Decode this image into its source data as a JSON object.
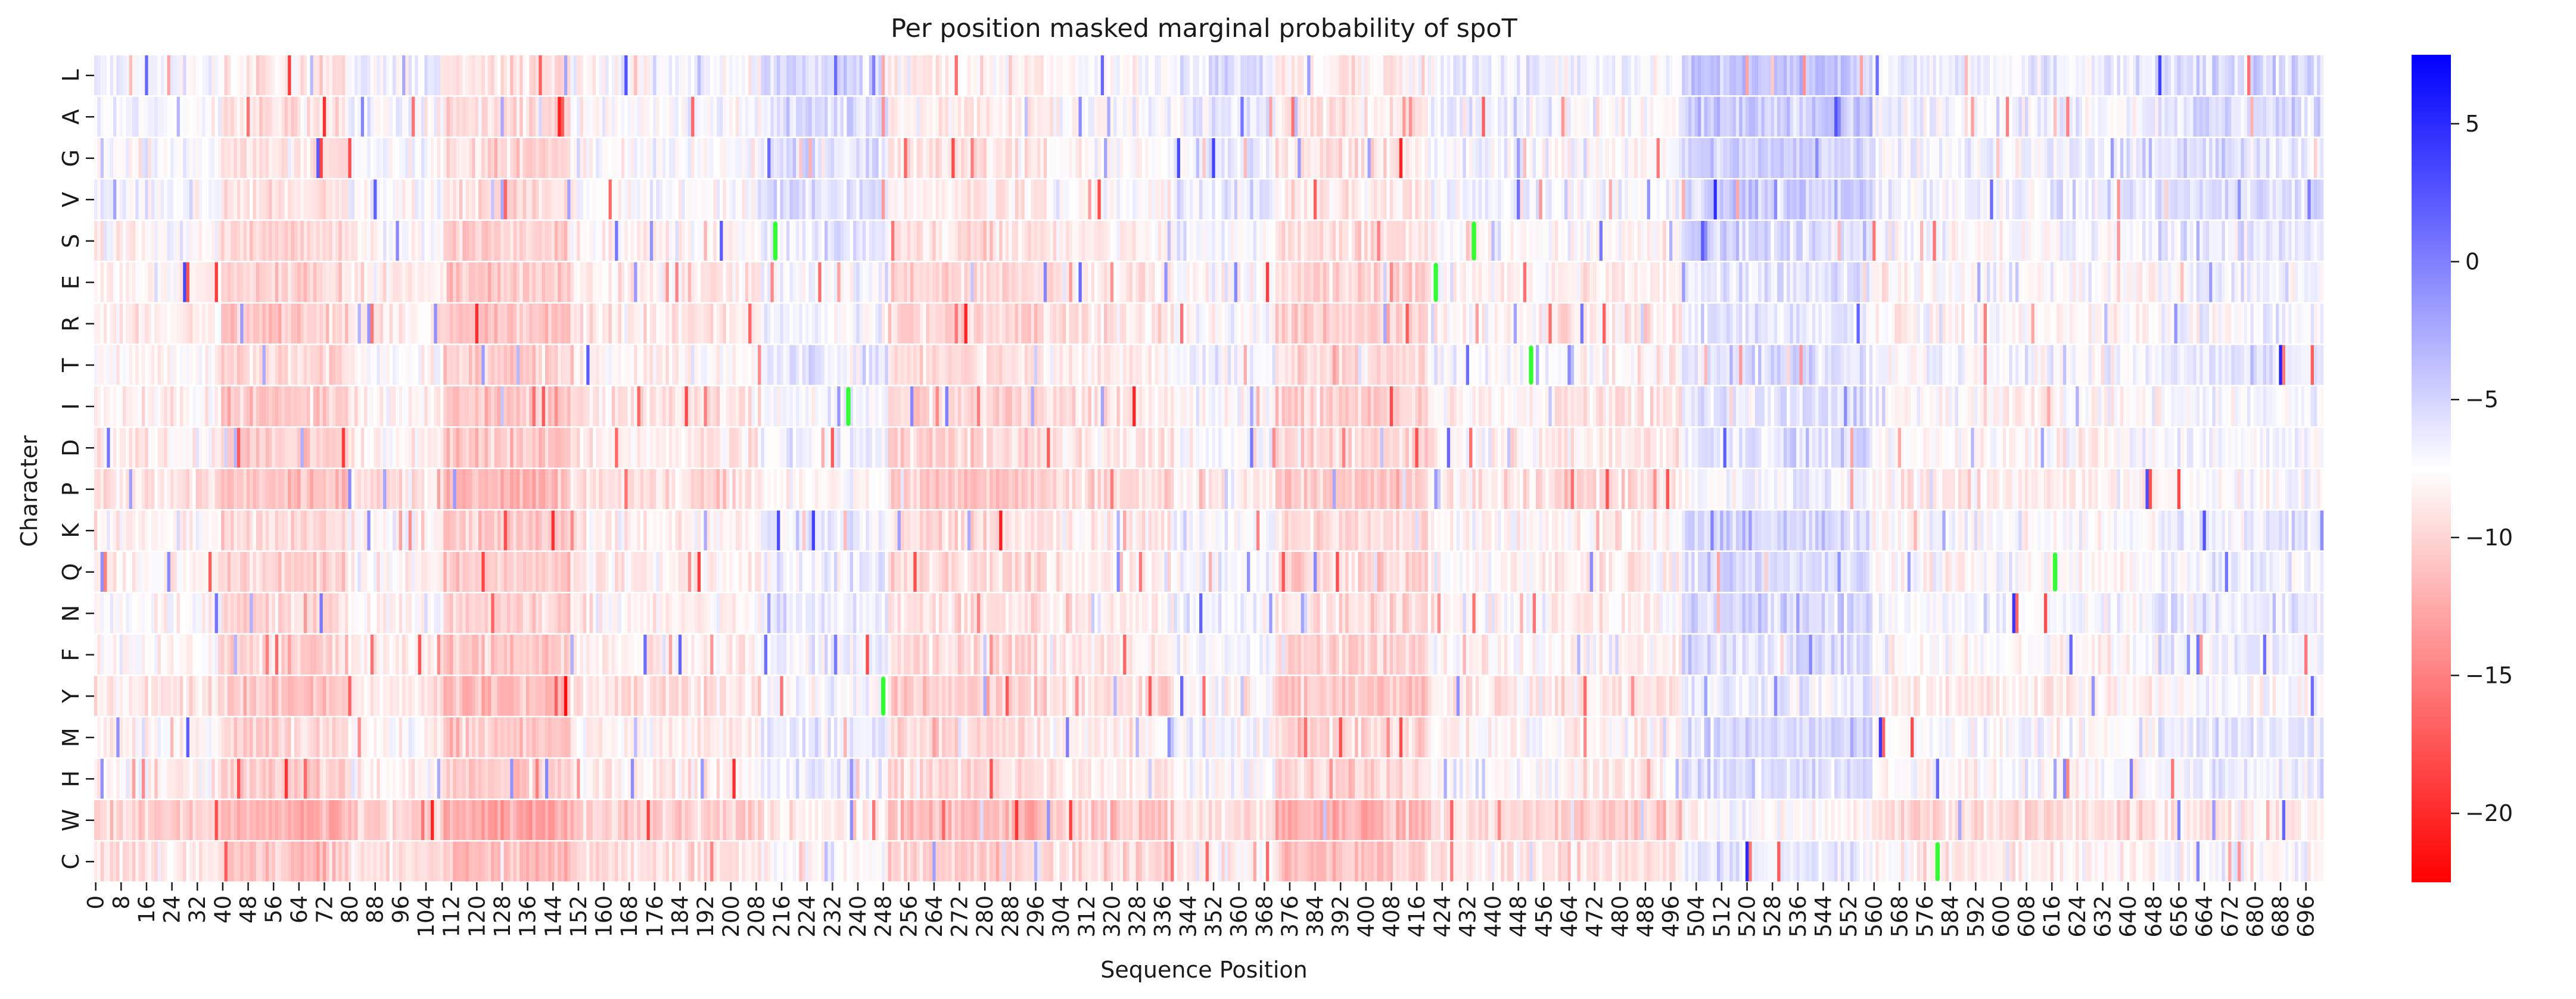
{
  "chart_data": {
    "type": "heatmap",
    "title": "Per position masked marginal probability of spoT",
    "xlabel": "Sequence Position",
    "ylabel": "Character",
    "rows": [
      "L",
      "A",
      "G",
      "V",
      "S",
      "E",
      "R",
      "T",
      "I",
      "D",
      "P",
      "K",
      "Q",
      "N",
      "F",
      "Y",
      "M",
      "H",
      "W",
      "C"
    ],
    "x_range": [
      0,
      702
    ],
    "x_tick_step": 8,
    "x_ticks": [
      0,
      8,
      16,
      24,
      32,
      40,
      48,
      56,
      64,
      72,
      80,
      88,
      96,
      104,
      112,
      120,
      128,
      136,
      144,
      152,
      160,
      168,
      176,
      184,
      192,
      200,
      208,
      216,
      224,
      232,
      240,
      248,
      256,
      264,
      272,
      280,
      288,
      296,
      304,
      312,
      320,
      328,
      336,
      344,
      352,
      360,
      368,
      376,
      384,
      392,
      400,
      408,
      416,
      424,
      432,
      440,
      448,
      456,
      464,
      472,
      480,
      488,
      496,
      504,
      512,
      520,
      528,
      536,
      544,
      552,
      560,
      568,
      576,
      584,
      592,
      600,
      608,
      616,
      624,
      632,
      640,
      648,
      656,
      664,
      672,
      680,
      688,
      696
    ],
    "colorbar": {
      "min": -22.5,
      "max": 7.5,
      "center": -7.5,
      "ticks": [
        5,
        0,
        -5,
        -10,
        -15,
        -20
      ],
      "tick_labels": [
        "5",
        "0",
        "−5",
        "−10",
        "−15",
        "−20"
      ],
      "colors": {
        "low": "#ff0000",
        "mid": "#ffffff",
        "high": "#0000ff"
      }
    },
    "column_profile": [
      {
        "start": 0,
        "end": 40,
        "mean": -8.5
      },
      {
        "start": 40,
        "end": 80,
        "mean": -10.5
      },
      {
        "start": 80,
        "end": 110,
        "mean": -8.5
      },
      {
        "start": 110,
        "end": 150,
        "mean": -11.0
      },
      {
        "start": 150,
        "end": 210,
        "mean": -8.8
      },
      {
        "start": 210,
        "end": 250,
        "mean": -7.0
      },
      {
        "start": 250,
        "end": 300,
        "mean": -10.0
      },
      {
        "start": 300,
        "end": 340,
        "mean": -9.0
      },
      {
        "start": 340,
        "end": 372,
        "mean": -7.6
      },
      {
        "start": 372,
        "end": 420,
        "mean": -10.2
      },
      {
        "start": 420,
        "end": 460,
        "mean": -8.2
      },
      {
        "start": 460,
        "end": 500,
        "mean": -8.8
      },
      {
        "start": 500,
        "end": 560,
        "mean": -6.0
      },
      {
        "start": 560,
        "end": 600,
        "mean": -8.0
      },
      {
        "start": 600,
        "end": 650,
        "mean": -8.0
      },
      {
        "start": 650,
        "end": 702,
        "mean": -7.0
      }
    ],
    "row_offsets": {
      "L": 1.6,
      "A": 1.4,
      "G": 1.2,
      "V": 1.4,
      "S": 0.8,
      "E": 0.2,
      "R": 0.0,
      "T": 0.8,
      "I": 0.0,
      "D": 0.2,
      "P": -0.6,
      "K": 0.6,
      "Q": 0.4,
      "N": 0.8,
      "F": 0.4,
      "Y": -0.4,
      "M": 0.6,
      "H": 0.4,
      "W": -1.6,
      "C": -0.4
    },
    "wildtype_markers": [
      {
        "position": 214,
        "residue": "S"
      },
      {
        "position": 434,
        "residue": "S"
      },
      {
        "position": 422,
        "residue": "E"
      },
      {
        "position": 452,
        "residue": "T"
      },
      {
        "position": 237,
        "residue": "I"
      },
      {
        "position": 617,
        "residue": "Q"
      },
      {
        "position": 248,
        "residue": "Y"
      },
      {
        "position": 580,
        "residue": "C"
      }
    ],
    "marker_color": "#33ff33"
  }
}
